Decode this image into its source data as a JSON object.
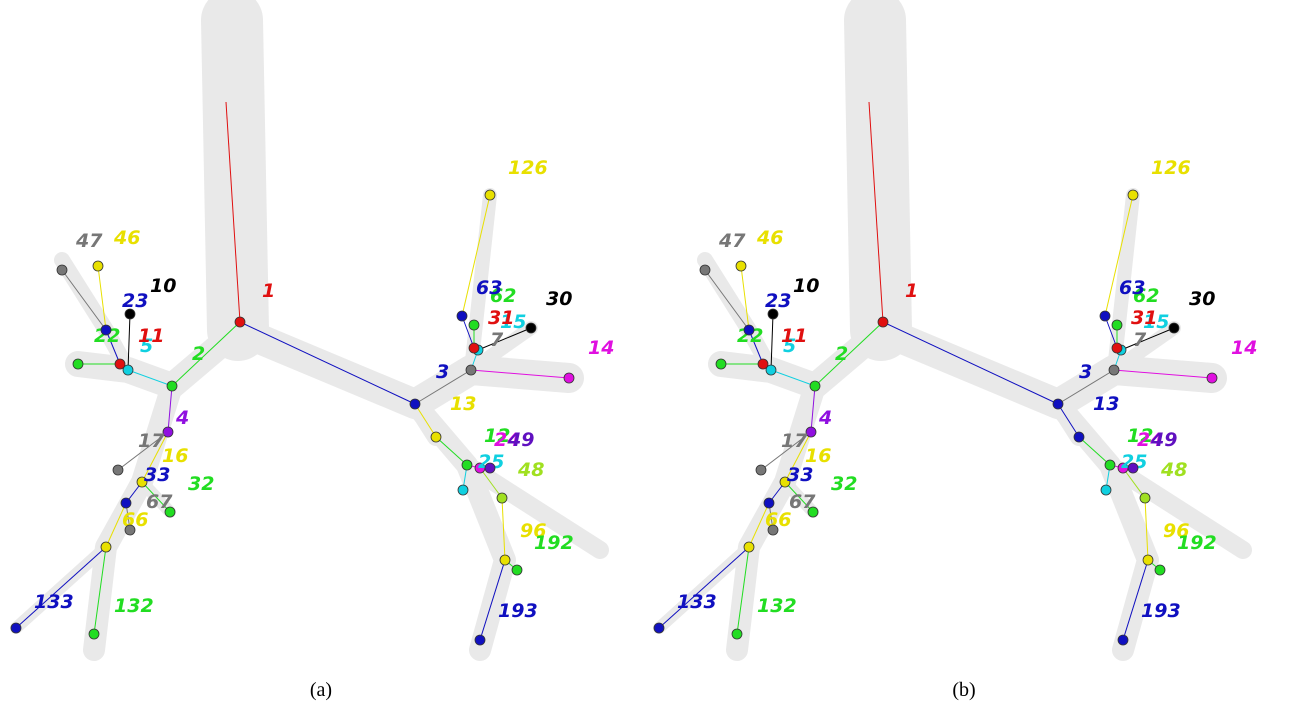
{
  "panels": [
    {
      "caption": "(a)",
      "nodes": [
        {
          "label": "1",
          "color": "#e01010"
        },
        {
          "label": "2",
          "color": "#22dd22"
        },
        {
          "label": "3",
          "color": "#1010c0"
        },
        {
          "label": "4",
          "color": "#9010e0"
        },
        {
          "label": "5",
          "color": "#10d0e0"
        },
        {
          "label": "7",
          "color": "#777777"
        },
        {
          "label": "10",
          "color": "#000000"
        },
        {
          "label": "11",
          "color": "#e01010"
        },
        {
          "label": "12",
          "color": "#22dd22"
        },
        {
          "label": "13",
          "color": "#e8e000"
        },
        {
          "label": "14",
          "color": "#e010e0"
        },
        {
          "label": "15",
          "color": "#10d0e0"
        },
        {
          "label": "16",
          "color": "#e8e000"
        },
        {
          "label": "17",
          "color": "#777777"
        },
        {
          "label": "22",
          "color": "#22dd22"
        },
        {
          "label": "23",
          "color": "#1010c0"
        },
        {
          "label": "24",
          "color": "#e010e0"
        },
        {
          "label": "25",
          "color": "#10d0e0"
        },
        {
          "label": "30",
          "color": "#000000"
        },
        {
          "label": "31",
          "color": "#e01010"
        },
        {
          "label": "32",
          "color": "#22dd22"
        },
        {
          "label": "33",
          "color": "#1010c0"
        },
        {
          "label": "46",
          "color": "#e8e000"
        },
        {
          "label": "47",
          "color": "#777777"
        },
        {
          "label": "48",
          "color": "#a0e020"
        },
        {
          "label": "49",
          "color": "#6010c0"
        },
        {
          "label": "62",
          "color": "#22dd22"
        },
        {
          "label": "63",
          "color": "#1010c0"
        },
        {
          "label": "66",
          "color": "#e8e000"
        },
        {
          "label": "67",
          "color": "#777777"
        },
        {
          "label": "96",
          "color": "#e8e000"
        },
        {
          "label": "126",
          "color": "#e8e000"
        },
        {
          "label": "132",
          "color": "#22dd22"
        },
        {
          "label": "133",
          "color": "#1010c0"
        },
        {
          "label": "192",
          "color": "#22dd22"
        },
        {
          "label": "193",
          "color": "#1010c0"
        }
      ]
    },
    {
      "caption": "(b)",
      "nodes": [
        {
          "label": "1",
          "color": "#e01010"
        },
        {
          "label": "2",
          "color": "#22dd22"
        },
        {
          "label": "3",
          "color": "#1010c0"
        },
        {
          "label": "4",
          "color": "#9010e0"
        },
        {
          "label": "5",
          "color": "#10d0e0"
        },
        {
          "label": "7",
          "color": "#777777"
        },
        {
          "label": "10",
          "color": "#000000"
        },
        {
          "label": "11",
          "color": "#e01010"
        },
        {
          "label": "12",
          "color": "#22dd22"
        },
        {
          "label": "13",
          "color": "#1010c0"
        },
        {
          "label": "14",
          "color": "#e010e0"
        },
        {
          "label": "15",
          "color": "#10d0e0"
        },
        {
          "label": "16",
          "color": "#e8e000"
        },
        {
          "label": "17",
          "color": "#777777"
        },
        {
          "label": "22",
          "color": "#22dd22"
        },
        {
          "label": "23",
          "color": "#1010c0"
        },
        {
          "label": "24",
          "color": "#e010e0"
        },
        {
          "label": "25",
          "color": "#10d0e0"
        },
        {
          "label": "30",
          "color": "#000000"
        },
        {
          "label": "31",
          "color": "#e01010"
        },
        {
          "label": "32",
          "color": "#22dd22"
        },
        {
          "label": "33",
          "color": "#1010c0"
        },
        {
          "label": "46",
          "color": "#e8e000"
        },
        {
          "label": "47",
          "color": "#777777"
        },
        {
          "label": "48",
          "color": "#a0e020"
        },
        {
          "label": "49",
          "color": "#6010c0"
        },
        {
          "label": "62",
          "color": "#22dd22"
        },
        {
          "label": "63",
          "color": "#1010c0"
        },
        {
          "label": "66",
          "color": "#e8e000"
        },
        {
          "label": "67",
          "color": "#777777"
        },
        {
          "label": "96",
          "color": "#e8e000"
        },
        {
          "label": "126",
          "color": "#e8e000"
        },
        {
          "label": "132",
          "color": "#22dd22"
        },
        {
          "label": "133",
          "color": "#1010c0"
        },
        {
          "label": "192",
          "color": "#22dd22"
        },
        {
          "label": "193",
          "color": "#1010c0"
        }
      ]
    }
  ]
}
